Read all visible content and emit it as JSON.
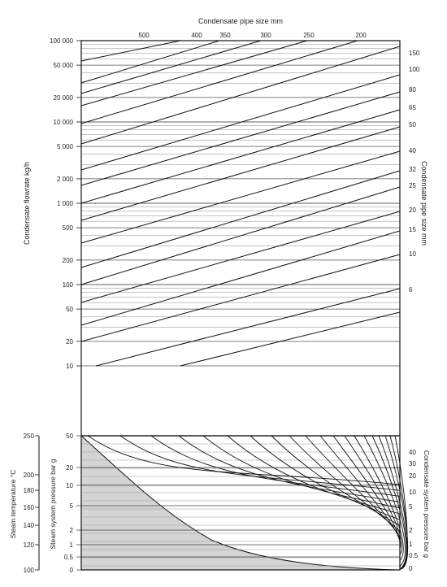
{
  "chart_data": [
    {
      "type": "line",
      "panel": "upper",
      "title": "",
      "top_axis_label": "Condensate pipe size mm",
      "left_axis_label": "Condensate flowrate kg/h",
      "right_axis_label": "Condensate pipe size mm",
      "y_scale": "log",
      "ylim": [
        10,
        100000
      ],
      "y_ticks": [
        {
          "value": 100000,
          "label": "100 000"
        },
        {
          "value": 50000,
          "label": "50 000"
        },
        {
          "value": 20000,
          "label": "20 000"
        },
        {
          "value": 10000,
          "label": "10 000"
        },
        {
          "value": 5000,
          "label": "5 000"
        },
        {
          "value": 2000,
          "label": "2 000"
        },
        {
          "value": 1000,
          "label": "1 000"
        },
        {
          "value": 500,
          "label": "500"
        },
        {
          "value": 200,
          "label": "200"
        },
        {
          "value": 100,
          "label": "100"
        },
        {
          "value": 50,
          "label": "50"
        },
        {
          "value": 20,
          "label": "20"
        },
        {
          "value": 10,
          "label": "10"
        }
      ],
      "top_ticks": [
        "500",
        "400",
        "350",
        "300",
        "250",
        "200"
      ],
      "right_ticks": [
        "150",
        "100",
        "80",
        "65",
        "50",
        "40",
        "32",
        "25",
        "20",
        "15",
        "10",
        "6"
      ],
      "grid": true,
      "diagonal_line_count": 20
    },
    {
      "type": "line",
      "panel": "lower",
      "left_axis_label_1": "Steam temperature °C",
      "left_axis_label_2": "Steam system pressure bar g",
      "right_axis_label": "Condensate system pressure bar g",
      "temperature_ticks": [
        "250",
        "200",
        "180",
        "160",
        "140",
        "120",
        "100"
      ],
      "pressure_ticks": [
        "50",
        "20",
        "10",
        "5",
        "2",
        "1",
        "0.5",
        "0"
      ],
      "right_ticks": [
        "40",
        "30",
        "20",
        "10",
        "5",
        "2",
        "1",
        "0.5",
        "0"
      ],
      "shaded_region": "saturation",
      "curve_count": 22
    }
  ]
}
